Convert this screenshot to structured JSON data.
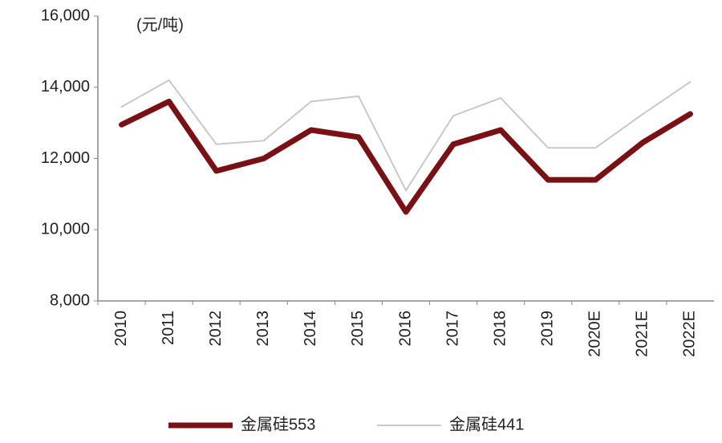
{
  "chart_data": {
    "type": "line",
    "unit_label": "(元/吨)",
    "categories": [
      "2010",
      "2011",
      "2012",
      "2013",
      "2014",
      "2015",
      "2016",
      "2017",
      "2018",
      "2019",
      "2020E",
      "2021E",
      "2022E"
    ],
    "series": [
      {
        "name": "金属硅553",
        "color": "#7a1014",
        "width": 7,
        "values": [
          12950,
          13600,
          11650,
          12000,
          12800,
          12600,
          10500,
          12400,
          12800,
          11400,
          11400,
          12450,
          13250
        ]
      },
      {
        "name": "金属硅441",
        "color": "#c8c8c8",
        "width": 2,
        "values": [
          13450,
          14200,
          12400,
          12500,
          13600,
          13750,
          11100,
          13200,
          13700,
          12300,
          12300,
          13250,
          14150
        ]
      }
    ],
    "ylim": [
      8000,
      16000
    ],
    "yticks": [
      {
        "value": 8000,
        "label": "8,000"
      },
      {
        "value": 10000,
        "label": "10,000"
      },
      {
        "value": 12000,
        "label": "12,000"
      },
      {
        "value": 14000,
        "label": "14,000"
      },
      {
        "value": 16000,
        "label": "16,000"
      }
    ],
    "grid": false,
    "legend": "bottom"
  }
}
